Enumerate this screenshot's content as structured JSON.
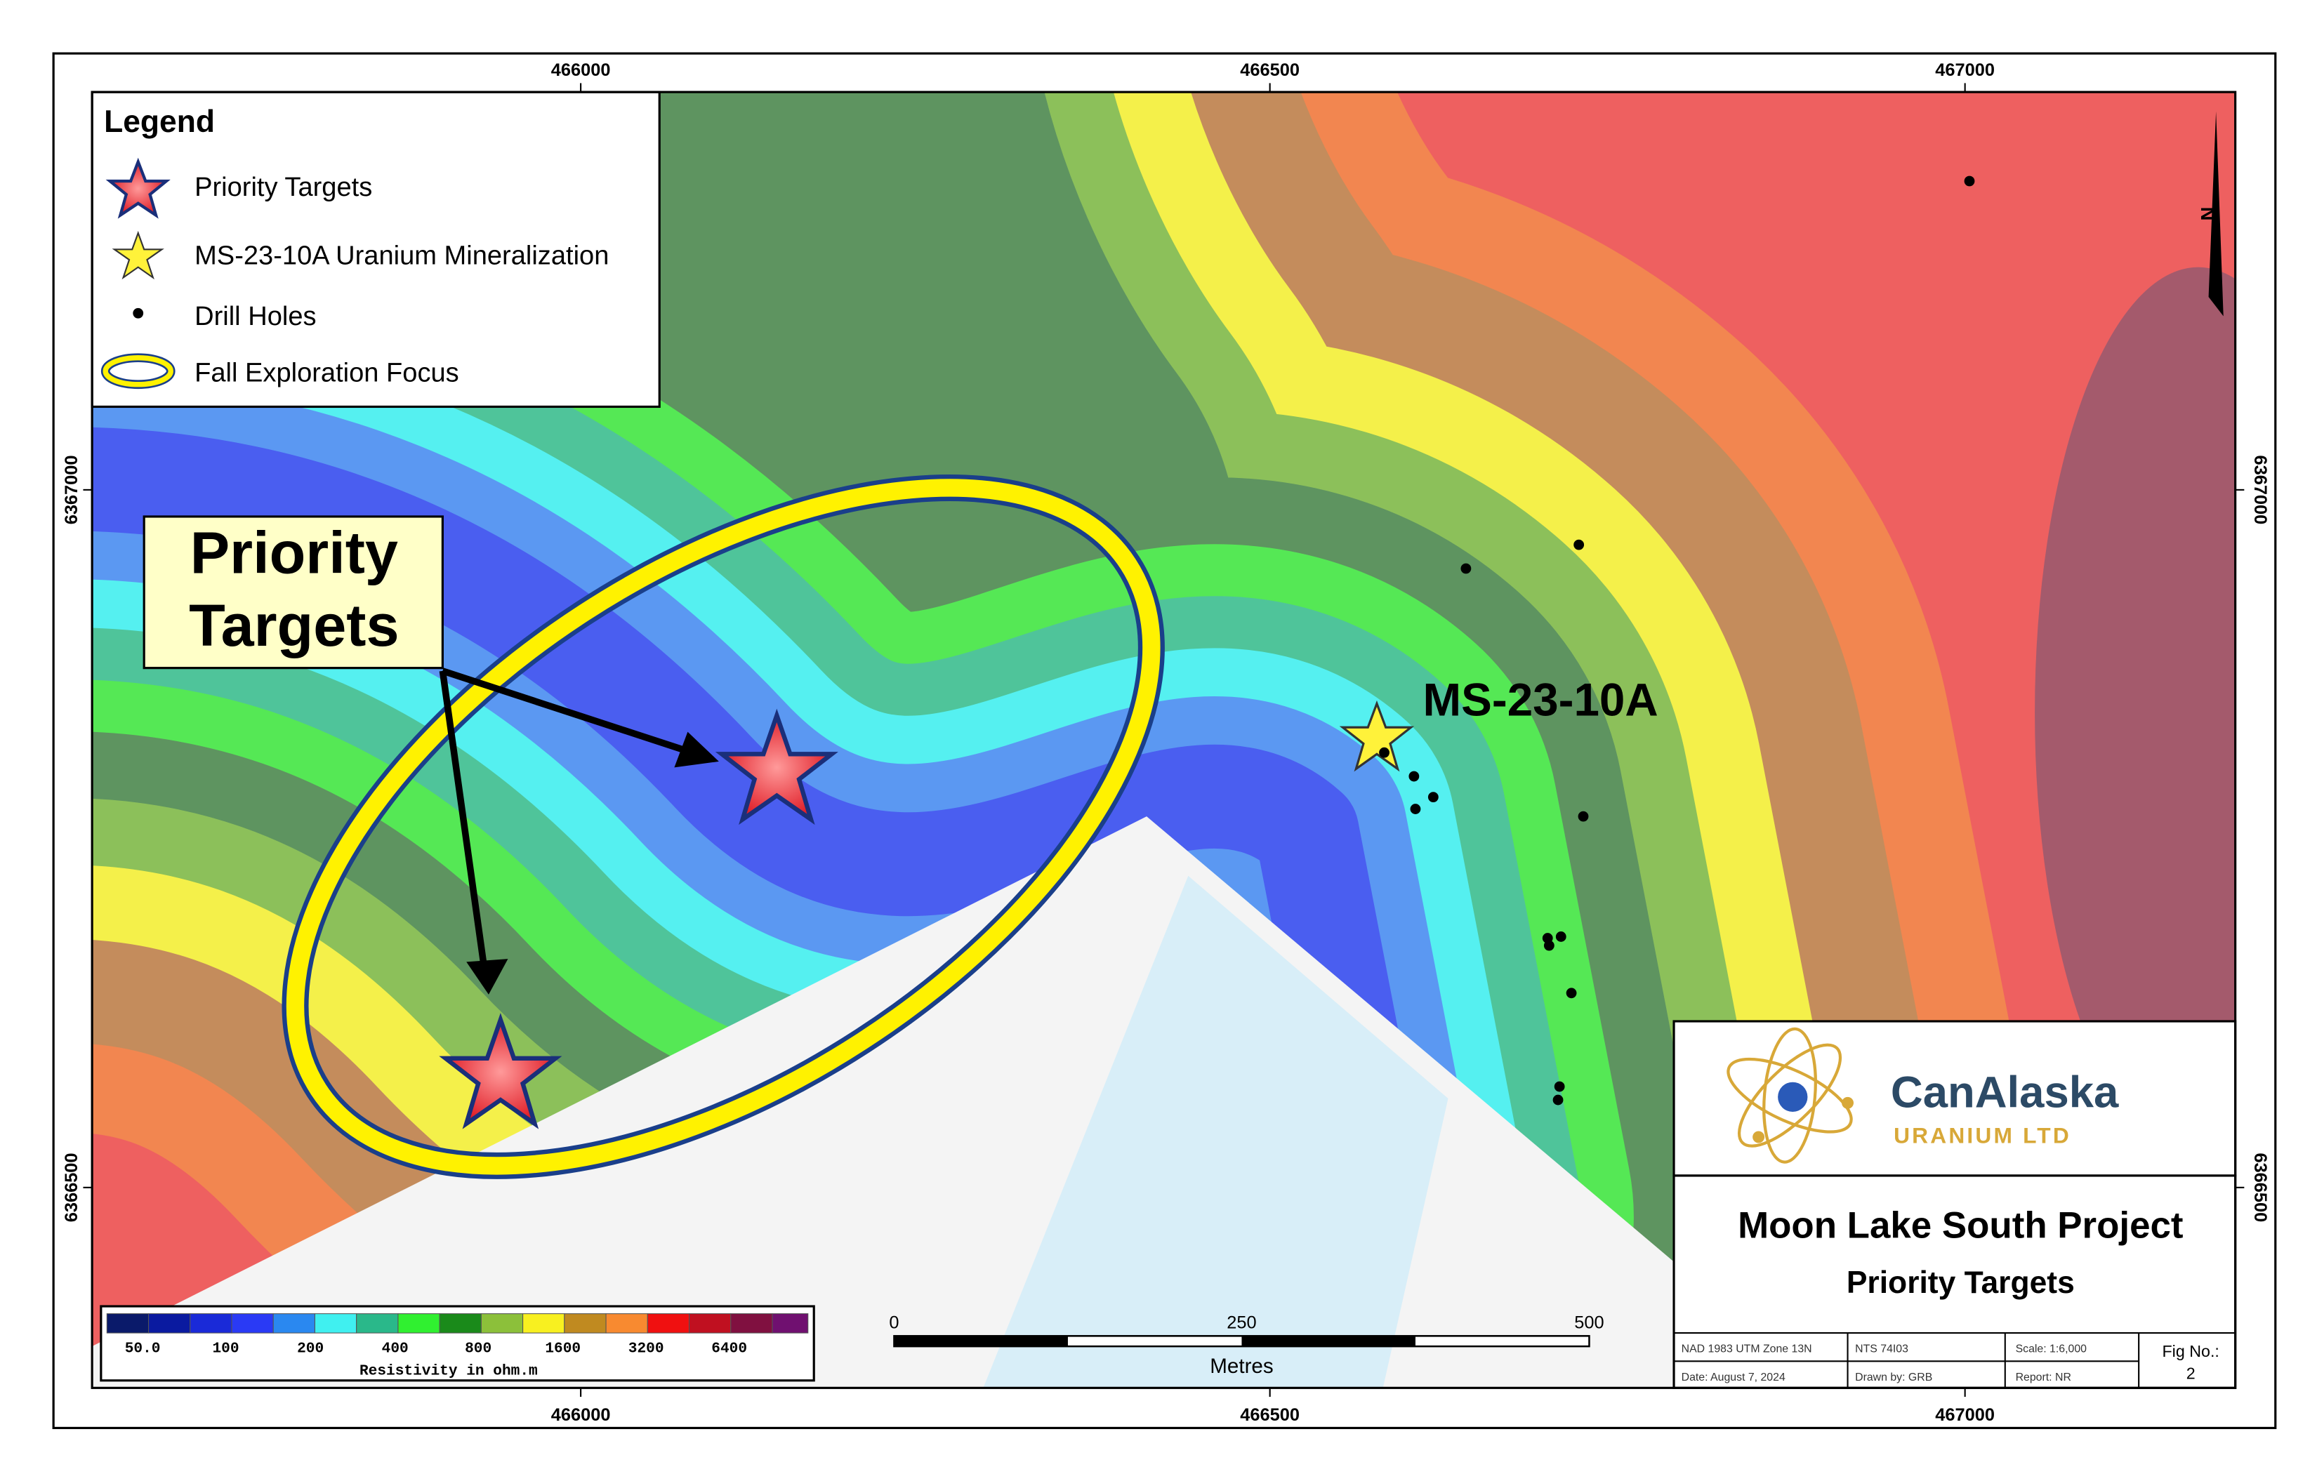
{
  "map": {
    "coordinates": {
      "x_labels": [
        "466000",
        "466500",
        "467000"
      ],
      "y_labels": [
        "6367000",
        "6366500"
      ]
    },
    "legend": {
      "title": "Legend",
      "items": [
        "Priority Targets",
        "MS-23-10A Uranium Mineralization",
        "Drill Holes",
        "Fall Exploration Focus"
      ]
    },
    "callout": {
      "lines": [
        "Priority",
        "Targets"
      ]
    },
    "drill_label": "MS-23-10A",
    "north": "N",
    "color_bar": {
      "labels": [
        "50.0",
        "100",
        "200",
        "400",
        "800",
        "1600",
        "3200",
        "6400"
      ],
      "title": "Resistivity in ohm.m"
    },
    "scale_bar": {
      "labels": [
        "0",
        "250",
        "500"
      ],
      "unit": "Metres"
    },
    "logo": {
      "name": "CanAlaska",
      "subtitle": "URANIUM LTD"
    },
    "title_block": {
      "title": "Moon Lake South Project",
      "subtitle": "Priority Targets",
      "cells": [
        "NAD 1983 UTM Zone 13N",
        "NTS 74I03",
        "Scale: 1:6,000",
        "Date: August 7, 2024",
        "Drawn by: GRB",
        "Report: NR"
      ],
      "fig_label": "Fig No.:",
      "fig_number": "2"
    }
  }
}
